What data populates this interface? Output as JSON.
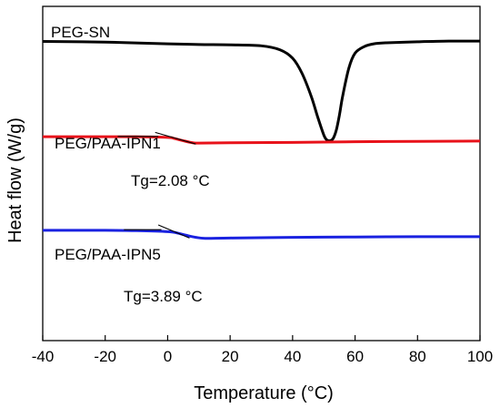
{
  "chart_data": {
    "type": "line",
    "title": "",
    "xlabel": "Temperature (°C)",
    "ylabel": "Heat flow (W/g)",
    "xlim": [
      -40,
      100
    ],
    "xticks": [
      -40,
      -20,
      0,
      20,
      40,
      60,
      80,
      100
    ],
    "xtick_labels": [
      "-40",
      "-20",
      "0",
      "20",
      "40",
      "60",
      "80",
      "100"
    ],
    "yticks_shown": false,
    "y_units": "arbitrary (stacked, offset curves)",
    "ylim": [
      0,
      100
    ],
    "grid": false,
    "legend": "none (curves labeled inline)",
    "series": [
      {
        "name": "PEG-SN",
        "color": "#000000",
        "x": [
          -40,
          -20,
          0,
          10,
          20,
          30,
          36,
          40,
          43,
          46,
          48,
          50,
          51,
          52,
          53,
          54,
          55,
          56,
          58,
          60,
          63,
          66,
          70,
          80,
          90,
          100
        ],
        "y": [
          89.5,
          89.3,
          88.8,
          88.6,
          88.5,
          88.2,
          87.0,
          84.5,
          80.0,
          73.0,
          67.0,
          61.5,
          60.0,
          59.8,
          60.5,
          63.0,
          67.5,
          73.0,
          81.5,
          86.0,
          88.0,
          88.8,
          89.1,
          89.4,
          89.6,
          89.6
        ]
      },
      {
        "name": "PEG/PAA-IPN1",
        "color": "#e8121a",
        "x": [
          -40,
          -20,
          -10,
          0,
          2,
          5,
          8,
          10,
          20,
          40,
          60,
          80,
          100
        ],
        "y": [
          61.0,
          61.0,
          61.0,
          60.8,
          60.5,
          59.8,
          59.2,
          59.1,
          59.2,
          59.3,
          59.5,
          59.6,
          59.7
        ]
      },
      {
        "name": "PEG/PAA-IPN5",
        "color": "#1a22e0",
        "x": [
          -40,
          -20,
          -10,
          0,
          3,
          6,
          9,
          12,
          20,
          40,
          60,
          80,
          100
        ],
        "y": [
          33.0,
          33.0,
          32.9,
          32.6,
          32.2,
          31.5,
          30.9,
          30.6,
          30.7,
          30.9,
          31.0,
          31.1,
          31.1
        ]
      }
    ],
    "annotations": [
      {
        "text": "Tg=2.08 °C",
        "series": "PEG/PAA-IPN1",
        "x": 2.08
      },
      {
        "text": "Tg=3.89 °C",
        "series": "PEG/PAA-IPN5",
        "x": 3.89
      }
    ]
  },
  "colors": {
    "axis": "#000000",
    "background": "#ffffff"
  }
}
